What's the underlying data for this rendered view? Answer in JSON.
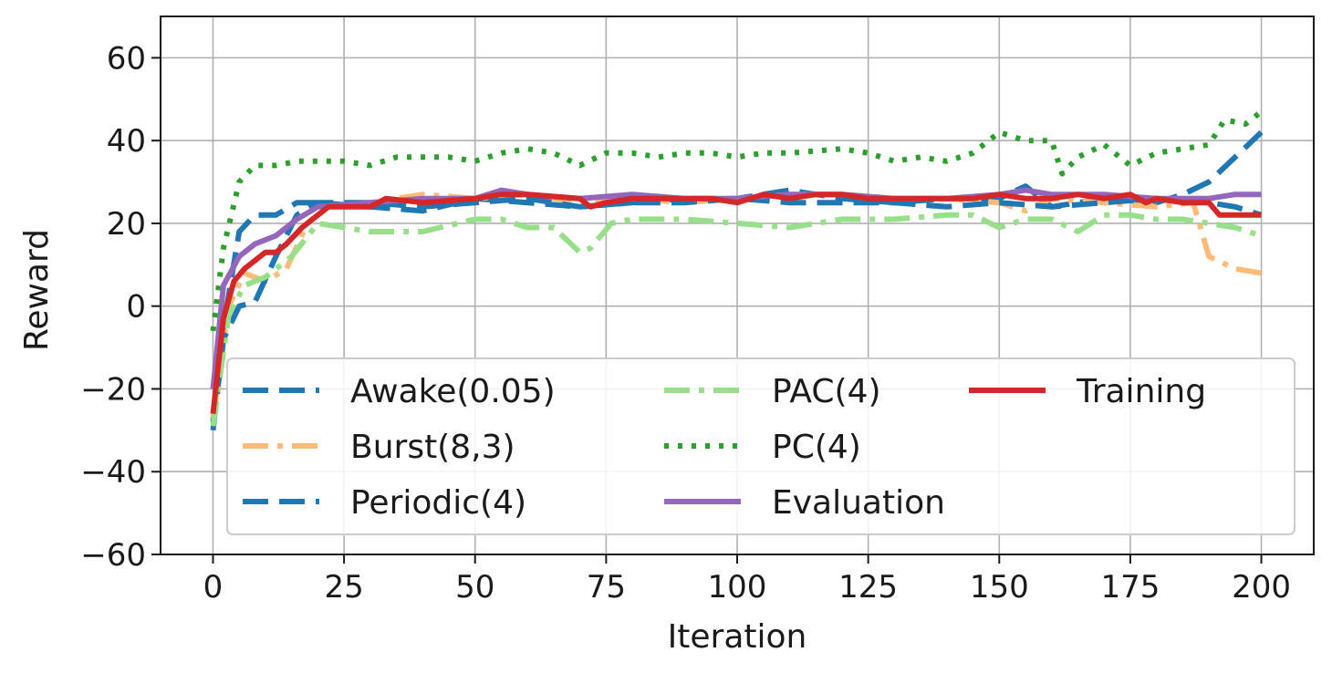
{
  "chart_data": {
    "type": "line",
    "title": "",
    "xlabel": "Iteration",
    "ylabel": "Reward",
    "xlim": [
      -10,
      210
    ],
    "ylim": [
      -60,
      70
    ],
    "xticks": [
      0,
      25,
      50,
      75,
      100,
      125,
      150,
      175,
      200
    ],
    "yticks": [
      -60,
      -40,
      -20,
      0,
      20,
      40,
      60
    ],
    "xtick_labels": [
      "0",
      "25",
      "50",
      "75",
      "100",
      "125",
      "150",
      "175",
      "200"
    ],
    "ytick_labels": [
      "−60",
      "−40",
      "−20",
      "0",
      "20",
      "40",
      "60"
    ],
    "grid": true,
    "legend_position": "lower-right",
    "legend_columns": 3,
    "series": [
      {
        "name": "Awake(0.05)",
        "color": "#1f77b4",
        "style": "dashed",
        "points": [
          [
            0,
            -28
          ],
          [
            2,
            -5
          ],
          [
            5,
            18
          ],
          [
            8,
            22
          ],
          [
            12,
            22
          ],
          [
            16,
            25
          ],
          [
            20,
            25
          ],
          [
            30,
            24
          ],
          [
            40,
            23
          ],
          [
            50,
            26
          ],
          [
            60,
            25
          ],
          [
            70,
            24
          ],
          [
            80,
            25
          ],
          [
            90,
            26
          ],
          [
            100,
            26
          ],
          [
            110,
            28
          ],
          [
            120,
            26
          ],
          [
            130,
            25
          ],
          [
            140,
            26
          ],
          [
            150,
            26
          ],
          [
            155,
            29
          ],
          [
            160,
            24
          ],
          [
            170,
            26
          ],
          [
            180,
            25
          ],
          [
            185,
            27
          ],
          [
            190,
            30
          ],
          [
            195,
            36
          ],
          [
            200,
            42
          ]
        ]
      },
      {
        "name": "Burst(8,3)",
        "color": "#ffbb78",
        "style": "dashdot",
        "points": [
          [
            0,
            -27
          ],
          [
            3,
            0
          ],
          [
            6,
            8
          ],
          [
            10,
            6
          ],
          [
            14,
            9
          ],
          [
            18,
            20
          ],
          [
            22,
            24
          ],
          [
            30,
            25
          ],
          [
            40,
            27
          ],
          [
            50,
            26
          ],
          [
            60,
            27
          ],
          [
            70,
            25
          ],
          [
            80,
            26
          ],
          [
            90,
            25
          ],
          [
            100,
            26
          ],
          [
            110,
            27
          ],
          [
            120,
            27
          ],
          [
            130,
            26
          ],
          [
            140,
            26
          ],
          [
            150,
            25
          ],
          [
            155,
            23
          ],
          [
            160,
            26
          ],
          [
            170,
            25
          ],
          [
            180,
            24
          ],
          [
            187,
            25
          ],
          [
            190,
            12
          ],
          [
            195,
            9
          ],
          [
            200,
            8
          ]
        ]
      },
      {
        "name": "Periodic(4)",
        "color": "#1f77b4",
        "style": "dashed",
        "points": [
          [
            0,
            -30
          ],
          [
            2,
            -8
          ],
          [
            5,
            0
          ],
          [
            8,
            1
          ],
          [
            12,
            12
          ],
          [
            16,
            22
          ],
          [
            20,
            25
          ],
          [
            30,
            25
          ],
          [
            40,
            24
          ],
          [
            50,
            25
          ],
          [
            60,
            26
          ],
          [
            70,
            24
          ],
          [
            80,
            25
          ],
          [
            90,
            25
          ],
          [
            100,
            26
          ],
          [
            110,
            25
          ],
          [
            120,
            25
          ],
          [
            130,
            25
          ],
          [
            140,
            24
          ],
          [
            150,
            25
          ],
          [
            160,
            24
          ],
          [
            170,
            25
          ],
          [
            180,
            26
          ],
          [
            190,
            25
          ],
          [
            195,
            24
          ],
          [
            200,
            22
          ]
        ]
      },
      {
        "name": "PAC(4)",
        "color": "#98df8a",
        "style": "dashdot",
        "points": [
          [
            0,
            -29
          ],
          [
            3,
            -2
          ],
          [
            6,
            5
          ],
          [
            10,
            7
          ],
          [
            15,
            12
          ],
          [
            20,
            20
          ],
          [
            25,
            19
          ],
          [
            30,
            18
          ],
          [
            40,
            18
          ],
          [
            50,
            21
          ],
          [
            55,
            21
          ],
          [
            60,
            19
          ],
          [
            65,
            19
          ],
          [
            70,
            13
          ],
          [
            72,
            14
          ],
          [
            76,
            20
          ],
          [
            80,
            21
          ],
          [
            90,
            21
          ],
          [
            100,
            20
          ],
          [
            110,
            19
          ],
          [
            120,
            21
          ],
          [
            130,
            21
          ],
          [
            140,
            22
          ],
          [
            145,
            22
          ],
          [
            150,
            19
          ],
          [
            155,
            21
          ],
          [
            160,
            21
          ],
          [
            165,
            18
          ],
          [
            170,
            22
          ],
          [
            175,
            22
          ],
          [
            180,
            21
          ],
          [
            185,
            21
          ],
          [
            190,
            20
          ],
          [
            195,
            19
          ],
          [
            200,
            17
          ]
        ]
      },
      {
        "name": "PC(4)",
        "color": "#2ca02c",
        "style": "dotted",
        "points": [
          [
            0,
            -6
          ],
          [
            2,
            14
          ],
          [
            5,
            30
          ],
          [
            8,
            34
          ],
          [
            12,
            34
          ],
          [
            16,
            35
          ],
          [
            20,
            35
          ],
          [
            25,
            35
          ],
          [
            30,
            34
          ],
          [
            35,
            36
          ],
          [
            40,
            36
          ],
          [
            45,
            36
          ],
          [
            50,
            35
          ],
          [
            55,
            37
          ],
          [
            60,
            38
          ],
          [
            65,
            37
          ],
          [
            70,
            34
          ],
          [
            75,
            37
          ],
          [
            80,
            37
          ],
          [
            85,
            36
          ],
          [
            90,
            37
          ],
          [
            95,
            37
          ],
          [
            100,
            36
          ],
          [
            105,
            37
          ],
          [
            110,
            37
          ],
          [
            120,
            38
          ],
          [
            125,
            37
          ],
          [
            130,
            35
          ],
          [
            135,
            36
          ],
          [
            140,
            35
          ],
          [
            145,
            37
          ],
          [
            150,
            42
          ],
          [
            155,
            40
          ],
          [
            160,
            40
          ],
          [
            162,
            32
          ],
          [
            165,
            36
          ],
          [
            170,
            39
          ],
          [
            175,
            34
          ],
          [
            180,
            37
          ],
          [
            185,
            38
          ],
          [
            190,
            39
          ],
          [
            193,
            45
          ],
          [
            197,
            44
          ],
          [
            200,
            47
          ]
        ]
      },
      {
        "name": "Evaluation",
        "color": "#9467bd",
        "style": "solid",
        "points": [
          [
            0,
            -20
          ],
          [
            2,
            5
          ],
          [
            5,
            12
          ],
          [
            8,
            15
          ],
          [
            12,
            17
          ],
          [
            16,
            21
          ],
          [
            20,
            24
          ],
          [
            30,
            25
          ],
          [
            40,
            26
          ],
          [
            50,
            26
          ],
          [
            55,
            28
          ],
          [
            60,
            27
          ],
          [
            70,
            26
          ],
          [
            80,
            27
          ],
          [
            90,
            26
          ],
          [
            100,
            26
          ],
          [
            110,
            27
          ],
          [
            120,
            27
          ],
          [
            130,
            26
          ],
          [
            140,
            26
          ],
          [
            150,
            27
          ],
          [
            155,
            28
          ],
          [
            160,
            27
          ],
          [
            170,
            27
          ],
          [
            180,
            26
          ],
          [
            190,
            26
          ],
          [
            195,
            27
          ],
          [
            200,
            27
          ]
        ]
      },
      {
        "name": "Training",
        "color": "#d62728",
        "style": "solid",
        "points": [
          [
            0,
            -26
          ],
          [
            2,
            -3
          ],
          [
            4,
            6
          ],
          [
            6,
            9
          ],
          [
            8,
            11
          ],
          [
            10,
            13
          ],
          [
            12,
            13
          ],
          [
            14,
            15
          ],
          [
            17,
            19
          ],
          [
            20,
            22
          ],
          [
            22,
            24
          ],
          [
            30,
            24
          ],
          [
            33,
            26
          ],
          [
            40,
            25
          ],
          [
            50,
            26
          ],
          [
            55,
            27
          ],
          [
            60,
            27
          ],
          [
            70,
            26
          ],
          [
            72,
            24
          ],
          [
            75,
            25
          ],
          [
            80,
            26
          ],
          [
            90,
            26
          ],
          [
            95,
            26
          ],
          [
            100,
            25
          ],
          [
            105,
            27
          ],
          [
            110,
            26
          ],
          [
            115,
            27
          ],
          [
            120,
            27
          ],
          [
            125,
            26
          ],
          [
            130,
            26
          ],
          [
            140,
            26
          ],
          [
            145,
            26
          ],
          [
            150,
            27
          ],
          [
            155,
            26
          ],
          [
            160,
            26
          ],
          [
            165,
            27
          ],
          [
            170,
            26
          ],
          [
            175,
            27
          ],
          [
            178,
            25
          ],
          [
            180,
            26
          ],
          [
            185,
            25
          ],
          [
            190,
            25
          ],
          [
            192,
            22
          ],
          [
            195,
            22
          ],
          [
            200,
            22
          ]
        ]
      }
    ]
  }
}
